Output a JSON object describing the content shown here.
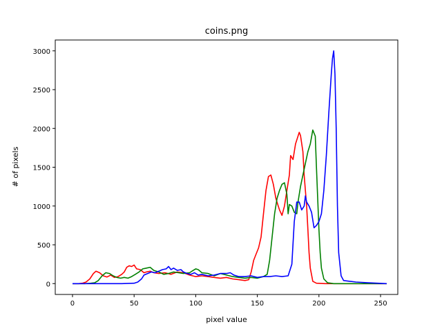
{
  "chart_data": {
    "type": "line",
    "title": "coins.png",
    "xlabel": "pixel value",
    "ylabel": "# of pixels",
    "xlim": [
      -14,
      264
    ],
    "ylim": [
      -140,
      3140
    ],
    "xticks": [
      0,
      50,
      100,
      150,
      200,
      250
    ],
    "yticks": [
      0,
      500,
      1000,
      1500,
      2000,
      2500,
      3000
    ],
    "grid": false,
    "series": [
      {
        "color": "#ff0000",
        "points": [
          [
            0,
            0
          ],
          [
            5,
            0
          ],
          [
            8,
            5
          ],
          [
            11,
            20
          ],
          [
            14,
            60
          ],
          [
            17,
            130
          ],
          [
            19,
            160
          ],
          [
            22,
            140
          ],
          [
            25,
            100
          ],
          [
            28,
            85
          ],
          [
            31,
            110
          ],
          [
            34,
            80
          ],
          [
            37,
            90
          ],
          [
            40,
            120
          ],
          [
            42,
            150
          ],
          [
            44,
            210
          ],
          [
            46,
            230
          ],
          [
            48,
            220
          ],
          [
            50,
            240
          ],
          [
            52,
            190
          ],
          [
            55,
            180
          ],
          [
            58,
            140
          ],
          [
            60,
            150
          ],
          [
            63,
            160
          ],
          [
            66,
            140
          ],
          [
            70,
            130
          ],
          [
            75,
            140
          ],
          [
            80,
            120
          ],
          [
            85,
            150
          ],
          [
            90,
            140
          ],
          [
            95,
            110
          ],
          [
            100,
            90
          ],
          [
            105,
            100
          ],
          [
            110,
            90
          ],
          [
            115,
            80
          ],
          [
            120,
            70
          ],
          [
            125,
            80
          ],
          [
            130,
            60
          ],
          [
            135,
            50
          ],
          [
            140,
            40
          ],
          [
            143,
            50
          ],
          [
            145,
            150
          ],
          [
            147,
            300
          ],
          [
            149,
            380
          ],
          [
            151,
            460
          ],
          [
            153,
            600
          ],
          [
            155,
            900
          ],
          [
            157,
            1200
          ],
          [
            159,
            1380
          ],
          [
            161,
            1400
          ],
          [
            163,
            1280
          ],
          [
            165,
            1100
          ],
          [
            167,
            1000
          ],
          [
            168,
            950
          ],
          [
            170,
            880
          ],
          [
            172,
            1000
          ],
          [
            174,
            1200
          ],
          [
            176,
            1400
          ],
          [
            177,
            1650
          ],
          [
            179,
            1600
          ],
          [
            181,
            1800
          ],
          [
            183,
            1900
          ],
          [
            184,
            1950
          ],
          [
            185,
            1910
          ],
          [
            187,
            1700
          ],
          [
            188,
            1400
          ],
          [
            189,
            1200
          ],
          [
            190,
            1000
          ],
          [
            191,
            700
          ],
          [
            192,
            400
          ],
          [
            193,
            200
          ],
          [
            195,
            30
          ],
          [
            198,
            5
          ],
          [
            205,
            0
          ],
          [
            255,
            0
          ]
        ]
      },
      {
        "color": "#008000",
        "points": [
          [
            0,
            0
          ],
          [
            10,
            0
          ],
          [
            15,
            5
          ],
          [
            18,
            10
          ],
          [
            21,
            40
          ],
          [
            24,
            100
          ],
          [
            27,
            140
          ],
          [
            30,
            130
          ],
          [
            33,
            100
          ],
          [
            36,
            80
          ],
          [
            39,
            70
          ],
          [
            42,
            80
          ],
          [
            45,
            70
          ],
          [
            48,
            90
          ],
          [
            51,
            120
          ],
          [
            54,
            150
          ],
          [
            57,
            190
          ],
          [
            60,
            200
          ],
          [
            63,
            210
          ],
          [
            66,
            170
          ],
          [
            70,
            150
          ],
          [
            74,
            120
          ],
          [
            78,
            130
          ],
          [
            82,
            150
          ],
          [
            86,
            140
          ],
          [
            90,
            130
          ],
          [
            95,
            140
          ],
          [
            98,
            170
          ],
          [
            100,
            190
          ],
          [
            102,
            180
          ],
          [
            105,
            140
          ],
          [
            110,
            130
          ],
          [
            115,
            100
          ],
          [
            120,
            130
          ],
          [
            125,
            110
          ],
          [
            130,
            90
          ],
          [
            135,
            80
          ],
          [
            140,
            70
          ],
          [
            145,
            80
          ],
          [
            150,
            70
          ],
          [
            155,
            90
          ],
          [
            158,
            120
          ],
          [
            160,
            300
          ],
          [
            162,
            600
          ],
          [
            164,
            900
          ],
          [
            166,
            1100
          ],
          [
            168,
            1200
          ],
          [
            170,
            1280
          ],
          [
            172,
            1300
          ],
          [
            174,
            1150
          ],
          [
            175,
            900
          ],
          [
            176,
            1020
          ],
          [
            178,
            1000
          ],
          [
            180,
            920
          ],
          [
            182,
            900
          ],
          [
            183,
            1050
          ],
          [
            185,
            1250
          ],
          [
            187,
            1400
          ],
          [
            189,
            1550
          ],
          [
            191,
            1700
          ],
          [
            193,
            1800
          ],
          [
            195,
            1980
          ],
          [
            197,
            1900
          ],
          [
            198,
            1500
          ],
          [
            199,
            1100
          ],
          [
            200,
            700
          ],
          [
            201,
            400
          ],
          [
            202,
            200
          ],
          [
            204,
            60
          ],
          [
            207,
            10
          ],
          [
            212,
            0
          ],
          [
            255,
            0
          ]
        ]
      },
      {
        "color": "#0000ff",
        "points": [
          [
            0,
            0
          ],
          [
            10,
            0
          ],
          [
            20,
            0
          ],
          [
            30,
            0
          ],
          [
            40,
            0
          ],
          [
            50,
            5
          ],
          [
            53,
            20
          ],
          [
            56,
            60
          ],
          [
            58,
            110
          ],
          [
            61,
            130
          ],
          [
            64,
            150
          ],
          [
            67,
            140
          ],
          [
            70,
            160
          ],
          [
            73,
            180
          ],
          [
            76,
            190
          ],
          [
            78,
            220
          ],
          [
            80,
            180
          ],
          [
            82,
            200
          ],
          [
            85,
            170
          ],
          [
            88,
            180
          ],
          [
            90,
            150
          ],
          [
            93,
            130
          ],
          [
            96,
            120
          ],
          [
            99,
            140
          ],
          [
            102,
            110
          ],
          [
            105,
            120
          ],
          [
            110,
            100
          ],
          [
            115,
            110
          ],
          [
            120,
            130
          ],
          [
            125,
            130
          ],
          [
            128,
            140
          ],
          [
            131,
            110
          ],
          [
            135,
            90
          ],
          [
            140,
            90
          ],
          [
            145,
            100
          ],
          [
            150,
            80
          ],
          [
            155,
            90
          ],
          [
            160,
            90
          ],
          [
            165,
            100
          ],
          [
            170,
            90
          ],
          [
            175,
            100
          ],
          [
            178,
            250
          ],
          [
            180,
            800
          ],
          [
            182,
            1050
          ],
          [
            184,
            1050
          ],
          [
            186,
            950
          ],
          [
            188,
            1000
          ],
          [
            189,
            1130
          ],
          [
            190,
            1050
          ],
          [
            192,
            1000
          ],
          [
            194,
            920
          ],
          [
            196,
            720
          ],
          [
            198,
            750
          ],
          [
            200,
            800
          ],
          [
            202,
            900
          ],
          [
            204,
            1200
          ],
          [
            206,
            1650
          ],
          [
            208,
            2200
          ],
          [
            210,
            2700
          ],
          [
            211,
            2900
          ],
          [
            212,
            3000
          ],
          [
            213,
            2700
          ],
          [
            214,
            2000
          ],
          [
            215,
            1000
          ],
          [
            216,
            400
          ],
          [
            218,
            100
          ],
          [
            220,
            40
          ],
          [
            225,
            30
          ],
          [
            230,
            20
          ],
          [
            240,
            10
          ],
          [
            255,
            0
          ]
        ]
      }
    ]
  }
}
